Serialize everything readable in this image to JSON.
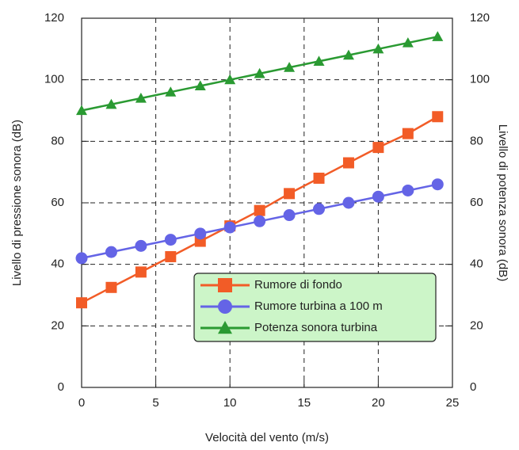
{
  "chart_data": {
    "type": "line",
    "x_label": "Velocità del vento (m/s)",
    "y_label": "Livello di pressione sonora (dB)",
    "y2_label": "Livello di potenza sonora (dB)",
    "x": [
      0,
      2,
      4,
      6,
      8,
      10,
      12,
      14,
      16,
      18,
      20,
      22,
      24
    ],
    "series": [
      {
        "name": "Rumore di fondo",
        "color": "#f25c27",
        "marker": "square",
        "values": [
          27.5,
          32.5,
          37.5,
          42.5,
          47.5,
          52.5,
          57.5,
          63,
          68,
          73,
          78,
          82.5,
          88
        ]
      },
      {
        "name": "Rumore turbina a 100 m",
        "color": "#6464e6",
        "marker": "circle",
        "values": [
          42,
          44,
          46,
          48,
          50,
          52,
          54,
          56,
          58,
          60,
          62,
          64,
          66
        ]
      },
      {
        "name": "Potenza sonora turbina",
        "color": "#2a9a32",
        "marker": "triangle",
        "axis": "y2",
        "values": [
          90,
          92,
          94,
          96,
          98,
          100,
          102,
          104,
          106,
          108,
          110,
          112,
          114
        ]
      }
    ],
    "xlim": [
      0,
      25
    ],
    "xticks": [
      0,
      5,
      10,
      15,
      20,
      25
    ],
    "ylim": [
      0,
      120
    ],
    "yticks": [
      0,
      20,
      40,
      60,
      80,
      100,
      120
    ],
    "y2lim": [
      0,
      120
    ],
    "y2ticks": [
      0,
      20,
      40,
      60,
      80,
      100,
      120
    ],
    "grid": true,
    "legend": "lower right"
  }
}
